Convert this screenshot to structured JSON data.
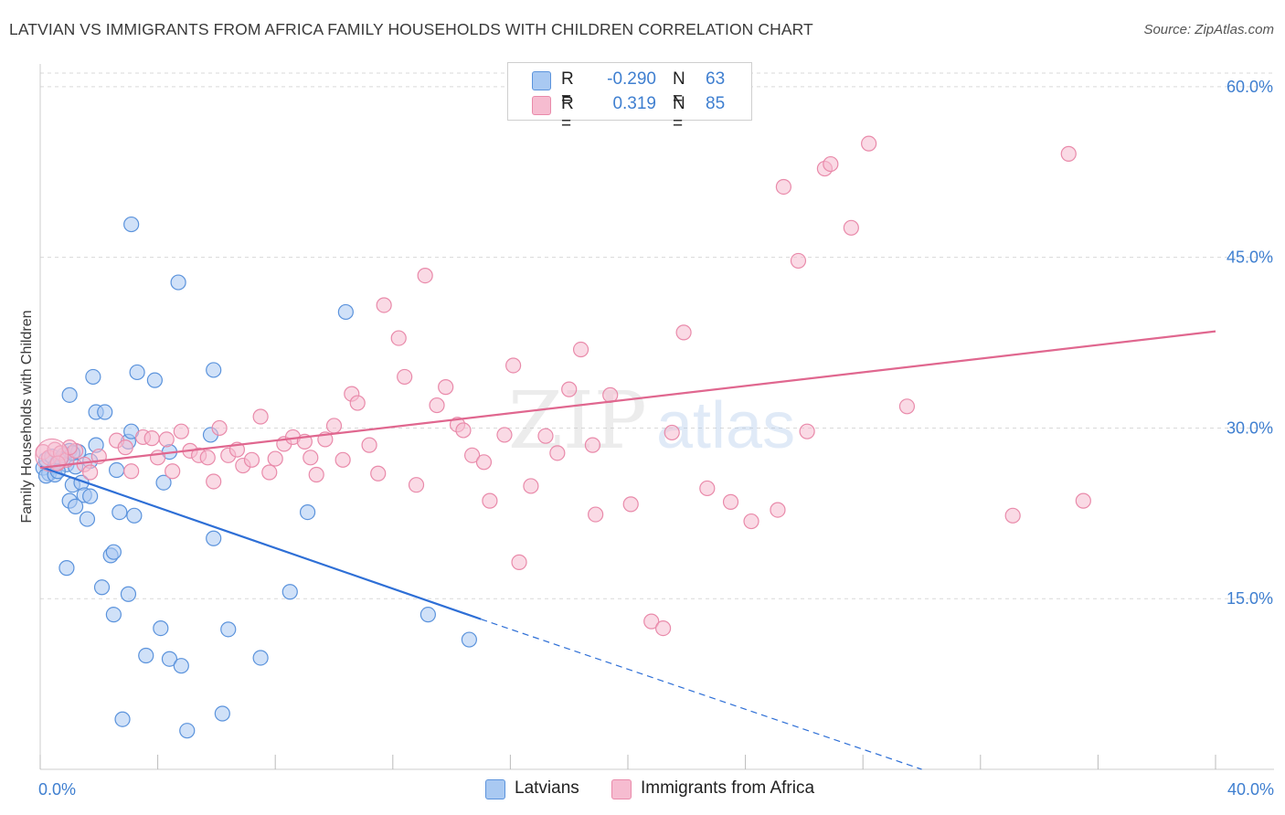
{
  "header": {
    "title": "LATVIAN VS IMMIGRANTS FROM AFRICA FAMILY HOUSEHOLDS WITH CHILDREN CORRELATION CHART",
    "source": "Source: ZipAtlas.com"
  },
  "legend": {
    "rows": [
      {
        "r_label": "R =",
        "r_value": "-0.290",
        "n_label": "N =",
        "n_value": "63"
      },
      {
        "r_label": "R =",
        "r_value": "0.319",
        "n_label": "N =",
        "n_value": "85"
      }
    ]
  },
  "bottom_legend": {
    "latvians": "Latvians",
    "africa": "Immigrants from Africa"
  },
  "watermark": {
    "zip": "ZIP",
    "atlas": "atlas"
  },
  "colors": {
    "latvian_fill": "#a9c9f2",
    "latvian_stroke": "#5b93dc",
    "latvian_line": "#2e6fd6",
    "africa_fill": "#f6bcd0",
    "africa_stroke": "#e98aaa",
    "africa_line": "#e0678f",
    "tick_text": "#3f7fd0",
    "grid": "#d9d9d9"
  },
  "chart_data": {
    "type": "scatter",
    "title": "LATVIAN VS IMMIGRANTS FROM AFRICA FAMILY HOUSEHOLDS WITH CHILDREN CORRELATION CHART",
    "xlabel": "",
    "ylabel": "Family Households with Children",
    "xlim": [
      0,
      40
    ],
    "ylim": [
      0,
      62
    ],
    "x_ticks": {
      "left": "0.0%",
      "right": "40.0%"
    },
    "y_ticks": [
      {
        "value": 15,
        "label": "15.0%"
      },
      {
        "value": 30,
        "label": "30.0%"
      },
      {
        "value": 45,
        "label": "45.0%"
      },
      {
        "value": 60,
        "label": "60.0%"
      }
    ],
    "grid": true,
    "series": [
      {
        "name": "Latvians",
        "r": -0.29,
        "n": 63,
        "trend": {
          "x0": 0,
          "y0": 26.6,
          "x1": 15,
          "y1": 13.2,
          "dash_to_x": 30,
          "dash_to_y": 0
        },
        "points": [
          [
            0.1,
            26.5
          ],
          [
            0.2,
            27.2
          ],
          [
            0.3,
            26.0
          ],
          [
            0.4,
            27.5
          ],
          [
            0.5,
            26.6
          ],
          [
            0.6,
            27.0
          ],
          [
            0.7,
            27.3
          ],
          [
            0.8,
            27.6
          ],
          [
            0.2,
            25.8
          ],
          [
            0.5,
            25.9
          ],
          [
            0.9,
            26.8
          ],
          [
            1.0,
            28.0
          ],
          [
            1.2,
            26.6
          ],
          [
            1.3,
            27.9
          ],
          [
            1.1,
            25.0
          ],
          [
            1.4,
            25.2
          ],
          [
            1.5,
            24.1
          ],
          [
            1.7,
            24.0
          ],
          [
            1.0,
            23.6
          ],
          [
            1.2,
            23.1
          ],
          [
            1.6,
            22.0
          ],
          [
            2.7,
            22.6
          ],
          [
            3.2,
            22.3
          ],
          [
            3.0,
            28.8
          ],
          [
            4.4,
            27.9
          ],
          [
            5.8,
            29.4
          ],
          [
            3.1,
            29.7
          ],
          [
            1.9,
            31.4
          ],
          [
            2.2,
            31.4
          ],
          [
            1.0,
            32.9
          ],
          [
            1.8,
            34.5
          ],
          [
            3.3,
            34.9
          ],
          [
            3.9,
            34.2
          ],
          [
            5.9,
            35.1
          ],
          [
            3.1,
            47.9
          ],
          [
            4.7,
            42.8
          ],
          [
            10.4,
            40.2
          ],
          [
            4.2,
            25.2
          ],
          [
            9.1,
            22.6
          ],
          [
            5.9,
            20.3
          ],
          [
            2.4,
            18.8
          ],
          [
            2.5,
            19.1
          ],
          [
            0.9,
            17.7
          ],
          [
            2.1,
            16.0
          ],
          [
            3.0,
            15.4
          ],
          [
            8.5,
            15.6
          ],
          [
            2.5,
            13.6
          ],
          [
            4.1,
            12.4
          ],
          [
            6.4,
            12.3
          ],
          [
            13.2,
            13.6
          ],
          [
            14.6,
            11.4
          ],
          [
            3.6,
            10.0
          ],
          [
            4.4,
            9.7
          ],
          [
            4.8,
            9.1
          ],
          [
            7.5,
            9.8
          ],
          [
            2.8,
            4.4
          ],
          [
            5.0,
            3.4
          ],
          [
            6.2,
            4.9
          ],
          [
            1.9,
            28.5
          ],
          [
            2.6,
            26.3
          ],
          [
            0.6,
            26.2
          ],
          [
            1.7,
            27.1
          ],
          [
            1.1,
            27.8
          ]
        ]
      },
      {
        "name": "Immigrants from Africa",
        "r": 0.319,
        "n": 85,
        "trend": {
          "x0": 0,
          "y0": 26.5,
          "x1": 40,
          "y1": 38.5
        },
        "points": [
          [
            0.1,
            27.9
          ],
          [
            0.3,
            27.4
          ],
          [
            0.5,
            28.1
          ],
          [
            0.7,
            27.8
          ],
          [
            0.9,
            27.2
          ],
          [
            1.2,
            28.0
          ],
          [
            1.5,
            26.8
          ],
          [
            1.7,
            26.1
          ],
          [
            0.6,
            26.9
          ],
          [
            1.0,
            28.3
          ],
          [
            2.0,
            27.5
          ],
          [
            2.6,
            28.9
          ],
          [
            2.9,
            28.3
          ],
          [
            3.1,
            26.2
          ],
          [
            3.5,
            29.2
          ],
          [
            3.8,
            29.1
          ],
          [
            4.0,
            27.4
          ],
          [
            4.3,
            29.0
          ],
          [
            4.5,
            26.2
          ],
          [
            4.8,
            29.7
          ],
          [
            5.1,
            28.0
          ],
          [
            5.4,
            27.6
          ],
          [
            5.7,
            27.4
          ],
          [
            5.9,
            25.3
          ],
          [
            6.1,
            30.0
          ],
          [
            6.4,
            27.6
          ],
          [
            6.7,
            28.1
          ],
          [
            6.9,
            26.7
          ],
          [
            7.2,
            27.2
          ],
          [
            7.5,
            31.0
          ],
          [
            7.8,
            26.1
          ],
          [
            8.0,
            27.3
          ],
          [
            8.3,
            28.6
          ],
          [
            8.6,
            29.2
          ],
          [
            9.0,
            28.8
          ],
          [
            9.2,
            27.4
          ],
          [
            9.4,
            25.9
          ],
          [
            9.7,
            29.0
          ],
          [
            10.0,
            30.2
          ],
          [
            10.3,
            27.2
          ],
          [
            10.6,
            33.0
          ],
          [
            10.8,
            32.2
          ],
          [
            11.2,
            28.5
          ],
          [
            11.5,
            26.0
          ],
          [
            11.7,
            40.8
          ],
          [
            12.2,
            37.9
          ],
          [
            12.4,
            34.5
          ],
          [
            12.8,
            25.0
          ],
          [
            13.1,
            43.4
          ],
          [
            13.5,
            32.0
          ],
          [
            13.8,
            33.6
          ],
          [
            14.2,
            30.3
          ],
          [
            14.4,
            29.8
          ],
          [
            14.7,
            27.6
          ],
          [
            15.1,
            27.0
          ],
          [
            15.3,
            23.6
          ],
          [
            15.8,
            29.4
          ],
          [
            16.1,
            35.5
          ],
          [
            16.3,
            18.2
          ],
          [
            16.7,
            24.9
          ],
          [
            17.2,
            29.3
          ],
          [
            17.6,
            27.8
          ],
          [
            18.0,
            33.4
          ],
          [
            18.4,
            36.9
          ],
          [
            18.8,
            28.5
          ],
          [
            18.9,
            22.4
          ],
          [
            19.4,
            32.9
          ],
          [
            20.1,
            23.3
          ],
          [
            20.8,
            13.0
          ],
          [
            21.2,
            12.4
          ],
          [
            21.5,
            29.6
          ],
          [
            21.9,
            38.4
          ],
          [
            22.7,
            24.7
          ],
          [
            23.5,
            23.5
          ],
          [
            24.2,
            21.8
          ],
          [
            25.1,
            22.8
          ],
          [
            25.3,
            51.2
          ],
          [
            25.8,
            44.7
          ],
          [
            26.1,
            29.7
          ],
          [
            26.7,
            52.8
          ],
          [
            26.9,
            53.2
          ],
          [
            27.6,
            47.6
          ],
          [
            28.2,
            55.0
          ],
          [
            35.0,
            54.1
          ],
          [
            29.5,
            31.9
          ]
        ],
        "extra_points": [
          [
            33.1,
            22.3
          ],
          [
            35.5,
            23.6
          ]
        ]
      }
    ]
  }
}
